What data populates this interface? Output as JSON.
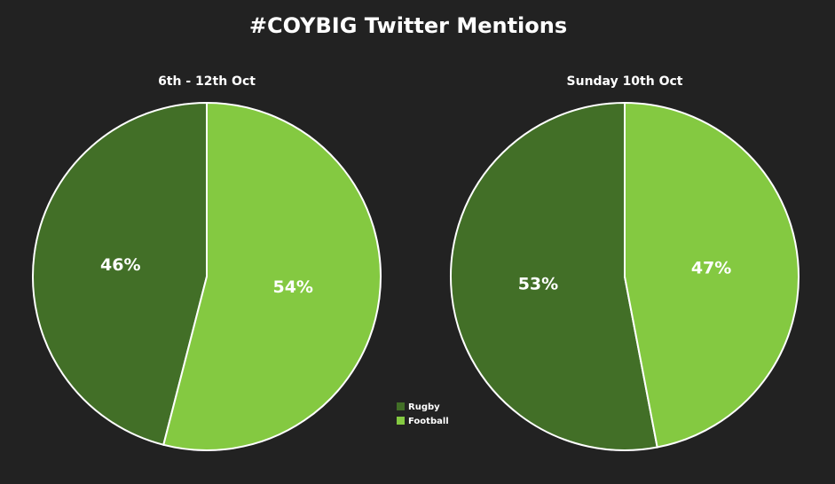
{
  "title": "#COYBIG Twitter Mentions",
  "chart_data": [
    {
      "type": "pie",
      "title": "6th - 12th Oct",
      "categories": [
        "Rugby",
        "Football"
      ],
      "values": [
        46,
        54
      ],
      "value_labels": [
        "46%",
        "54%"
      ],
      "colors": [
        "#426f27",
        "#84c941"
      ]
    },
    {
      "type": "pie",
      "title": "Sunday 10th Oct",
      "categories": [
        "Rugby",
        "Football"
      ],
      "values": [
        53,
        47
      ],
      "value_labels": [
        "53%",
        "47%"
      ],
      "colors": [
        "#426f27",
        "#84c941"
      ]
    }
  ]
}
